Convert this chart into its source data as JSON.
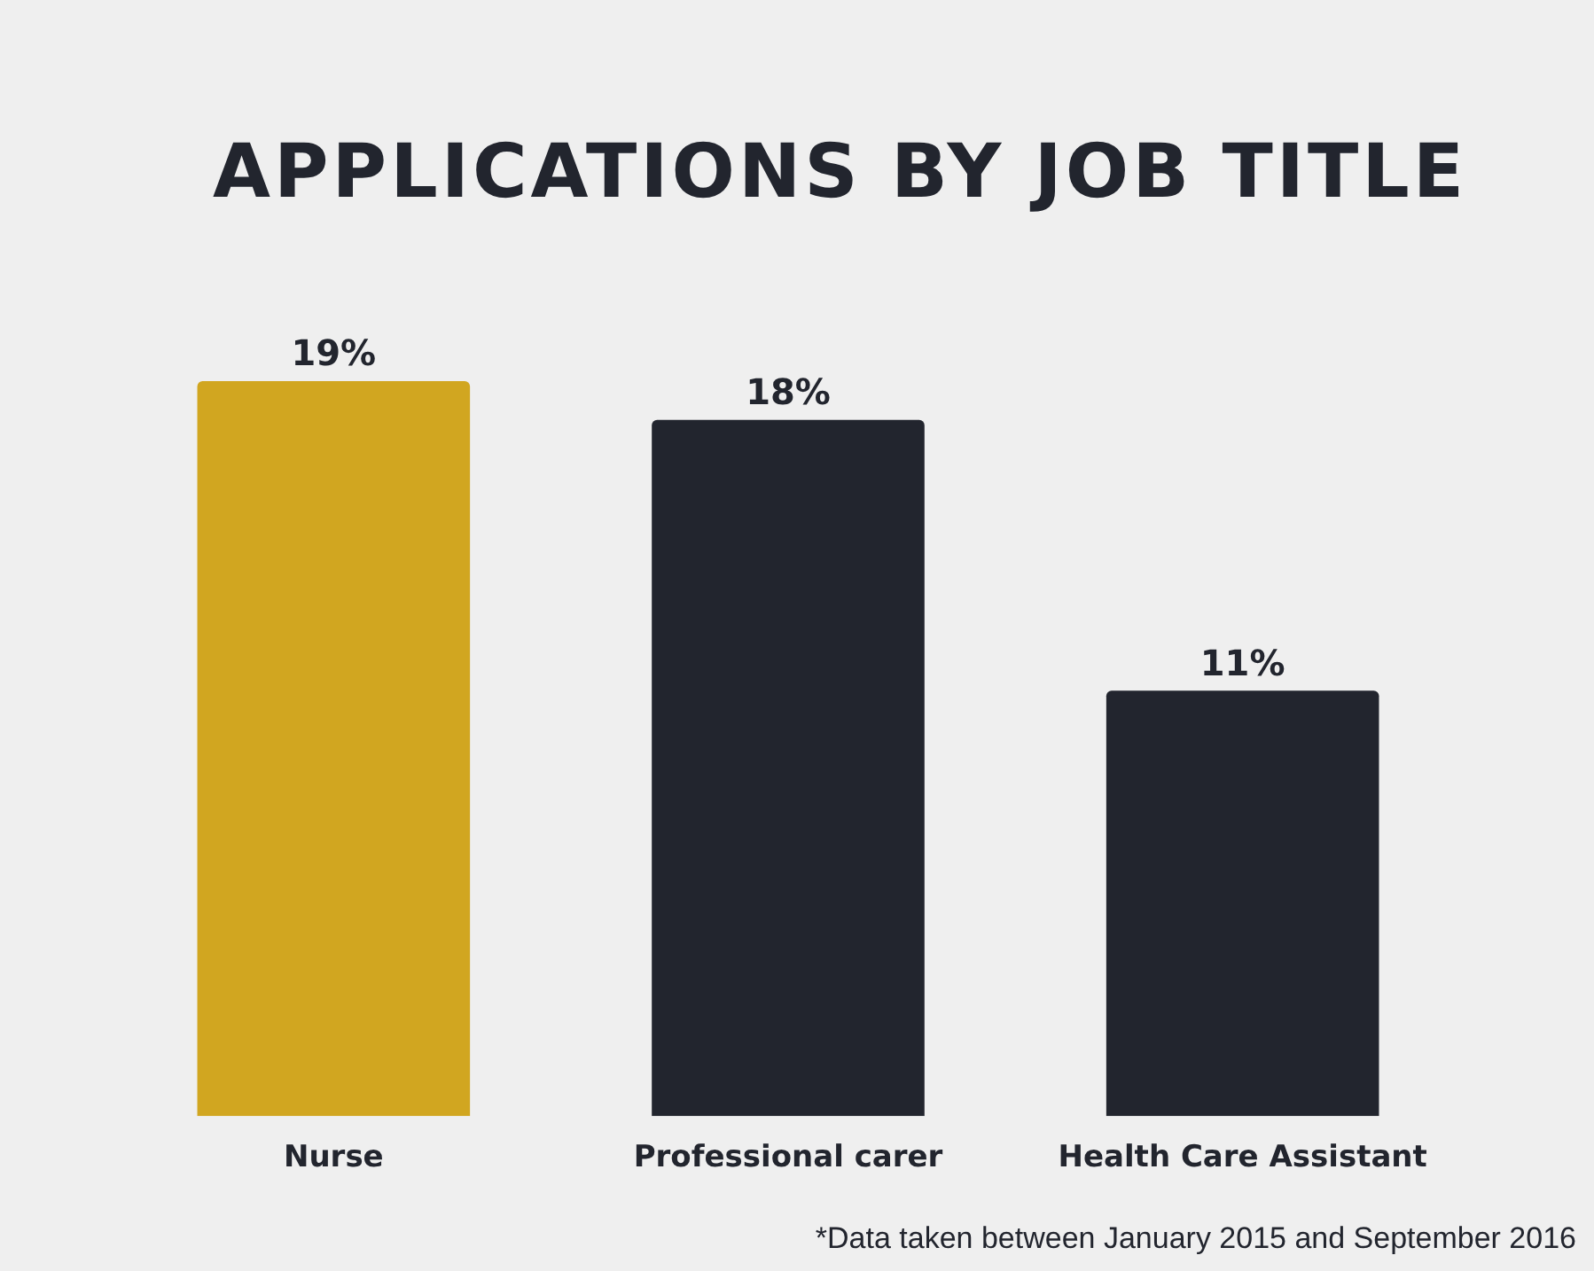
{
  "chart_data": {
    "type": "bar",
    "title": "APPLICATIONS BY JOB TITLE",
    "categories": [
      "Nurse",
      "Professional carer",
      "Health Care Assistant"
    ],
    "values": [
      19,
      18,
      11
    ],
    "colors": [
      "#d1a620",
      "#22252e",
      "#22252e"
    ],
    "value_labels": [
      "19%",
      "18%",
      "11%"
    ],
    "annotations": [
      "*Data taken between January 2015 and September 2016"
    ]
  }
}
